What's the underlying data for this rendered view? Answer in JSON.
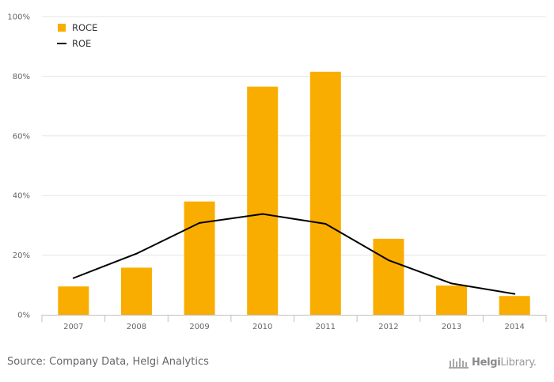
{
  "chart_data": {
    "type": "bar",
    "categories": [
      "2007",
      "2008",
      "2009",
      "2010",
      "2011",
      "2012",
      "2013",
      "2014"
    ],
    "series": [
      {
        "name": "ROCE",
        "type": "bar",
        "color": "#f9ad00",
        "values": [
          9.5,
          15.8,
          38.0,
          76.5,
          81.5,
          25.5,
          9.8,
          6.3
        ]
      },
      {
        "name": "ROE",
        "type": "line",
        "color": "#000000",
        "values": [
          12.3,
          20.5,
          30.8,
          33.8,
          30.5,
          18.3,
          10.5,
          7.0
        ]
      }
    ],
    "ylim": [
      0,
      100
    ],
    "yticks": [
      "0%",
      "20%",
      "40%",
      "60%",
      "80%",
      "100%"
    ],
    "grid": true,
    "legend": "top-left"
  },
  "footer": {
    "source": "Source: Company Data, Helgi Analytics",
    "logo_brand": "Helgi",
    "logo_suffix": "Library."
  }
}
